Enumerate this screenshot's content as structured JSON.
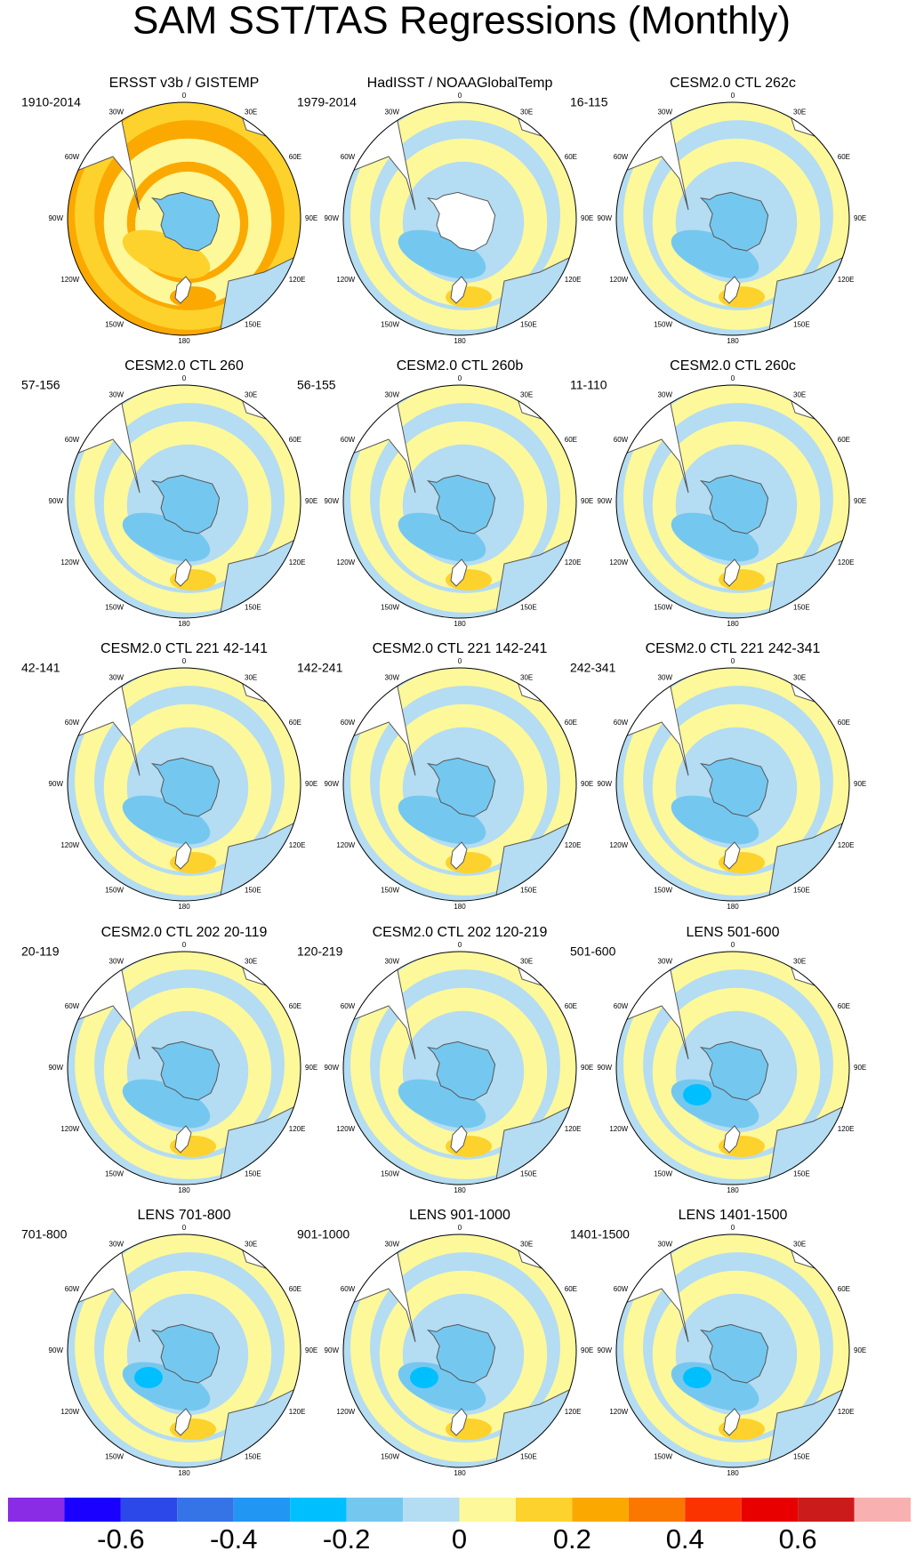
{
  "title": "SAM SST/TAS Regressions (Monthly)",
  "maps": [
    {
      "title": "ERSST v3b / GISTEMP",
      "period": "1910-2014"
    },
    {
      "title": "HadISST / NOAAGlobalTemp",
      "period": "1979-2014"
    },
    {
      "title": "CESM2.0 CTL 262c",
      "period": "16-115"
    },
    {
      "title": "CESM2.0 CTL 260",
      "period": "57-156"
    },
    {
      "title": "CESM2.0 CTL 260b",
      "period": "56-155"
    },
    {
      "title": "CESM2.0 CTL 260c",
      "period": "11-110"
    },
    {
      "title": "CESM2.0 CTL 221 42-141",
      "period": "42-141"
    },
    {
      "title": "CESM2.0 CTL 221 142-241",
      "period": "142-241"
    },
    {
      "title": "CESM2.0 CTL 221 242-341",
      "period": "242-341"
    },
    {
      "title": "CESM2.0 CTL 202 20-119",
      "period": "20-119"
    },
    {
      "title": "CESM2.0 CTL 202 120-219",
      "period": "120-219"
    },
    {
      "title": "LENS 501-600",
      "period": "501-600"
    },
    {
      "title": "LENS 701-800",
      "period": "701-800"
    },
    {
      "title": "LENS 901-1000",
      "period": "901-1000"
    },
    {
      "title": "LENS 1401-1500",
      "period": "1401-1500"
    }
  ],
  "longitude_labels": [
    "0",
    "30E",
    "60E",
    "90E",
    "120E",
    "150E",
    "180",
    "150W",
    "120W",
    "90W",
    "60W",
    "30W"
  ],
  "colorbar": {
    "colors": [
      "#8a2be6",
      "#1a00ff",
      "#2d48e8",
      "#3574e6",
      "#2296f3",
      "#00bfff",
      "#74c8f0",
      "#b4dcf2",
      "#fdf89a",
      "#fdd22c",
      "#fba900",
      "#fb7800",
      "#fb3300",
      "#e80000",
      "#cc1b1b",
      "#f8b0b0"
    ],
    "lim": [
      -0.8,
      0.8
    ],
    "ticks": [
      -0.6,
      -0.4,
      -0.2,
      0,
      0.2,
      0.4,
      0.6
    ]
  }
}
